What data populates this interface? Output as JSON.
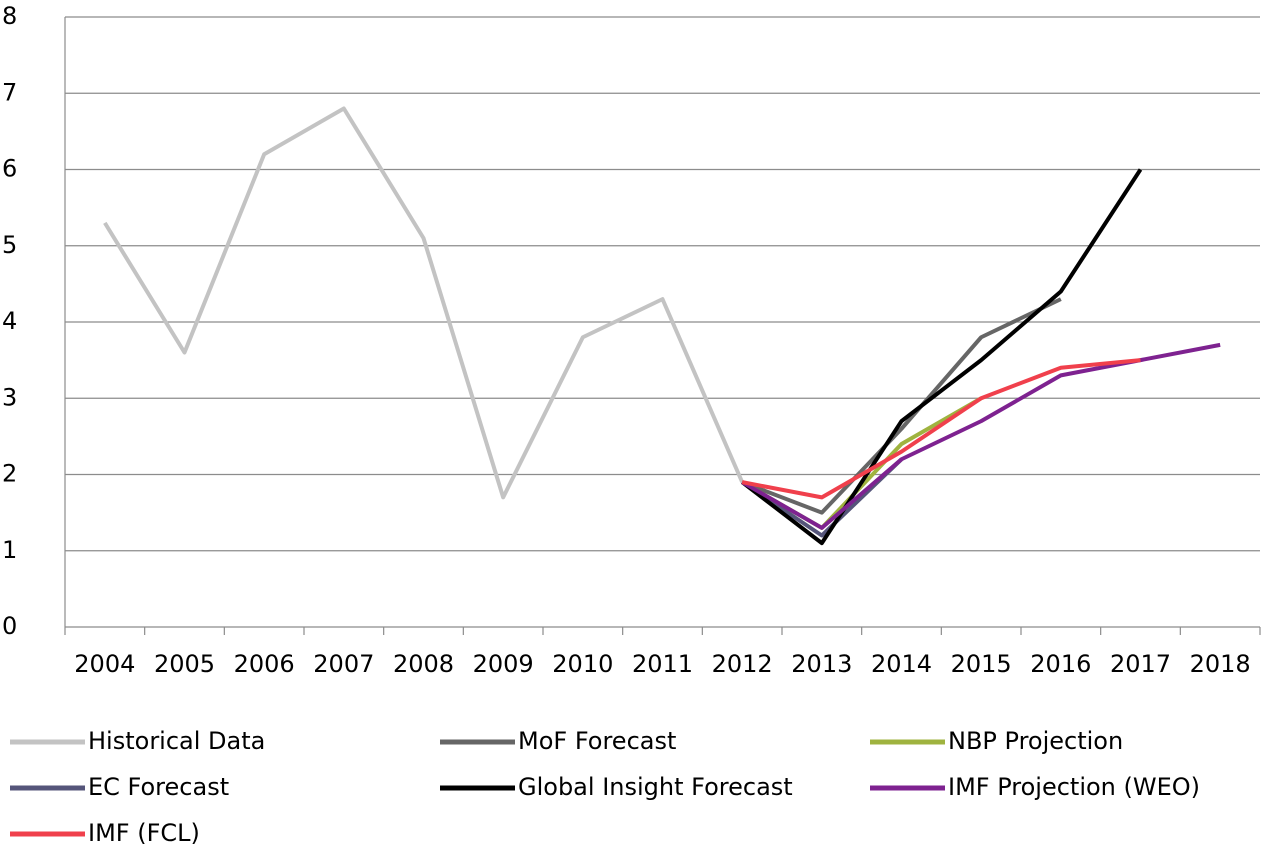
{
  "chart_data": {
    "type": "line",
    "categories": [
      "2004",
      "2005",
      "2006",
      "2007",
      "2008",
      "2009",
      "2010",
      "2011",
      "2012",
      "2013",
      "2014",
      "2015",
      "2016",
      "2017",
      "2018"
    ],
    "series": [
      {
        "name": "Historical Data",
        "color": "#c3c3c3",
        "values": [
          5.3,
          3.6,
          6.2,
          6.8,
          5.1,
          1.7,
          3.8,
          4.3,
          1.9,
          null,
          null,
          null,
          null,
          null,
          null
        ]
      },
      {
        "name": "MoF Forecast",
        "color": "#666666",
        "values": [
          null,
          null,
          null,
          null,
          null,
          null,
          null,
          null,
          1.9,
          1.5,
          2.6,
          3.8,
          4.3,
          null,
          null
        ]
      },
      {
        "name": "NBP Projection",
        "color": "#9fb33f",
        "values": [
          null,
          null,
          null,
          null,
          null,
          null,
          null,
          null,
          1.9,
          1.3,
          2.4,
          3.0,
          null,
          null,
          null
        ]
      },
      {
        "name": "EC Forecast",
        "color": "#55557a",
        "values": [
          null,
          null,
          null,
          null,
          null,
          null,
          null,
          null,
          1.9,
          1.2,
          2.2,
          null,
          null,
          null,
          null
        ]
      },
      {
        "name": "Global Insight Forecast",
        "color": "#000000",
        "values": [
          null,
          null,
          null,
          null,
          null,
          null,
          null,
          null,
          1.9,
          1.1,
          2.7,
          3.5,
          4.4,
          6.0,
          null
        ]
      },
      {
        "name": "IMF Projection (WEO)",
        "color": "#7e2290",
        "values": [
          null,
          null,
          null,
          null,
          null,
          null,
          null,
          null,
          1.9,
          1.3,
          2.2,
          2.7,
          3.3,
          3.5,
          3.7
        ]
      },
      {
        "name": "IMF (FCL)",
        "color": "#f0404c",
        "values": [
          null,
          null,
          null,
          null,
          null,
          null,
          null,
          null,
          1.9,
          1.7,
          2.3,
          3.0,
          3.4,
          3.5,
          null
        ]
      }
    ],
    "ylim": [
      0,
      8
    ],
    "yticks": [
      0,
      1,
      2,
      3,
      4,
      5,
      6,
      7,
      8
    ],
    "grid": true,
    "legend": "bottom"
  }
}
